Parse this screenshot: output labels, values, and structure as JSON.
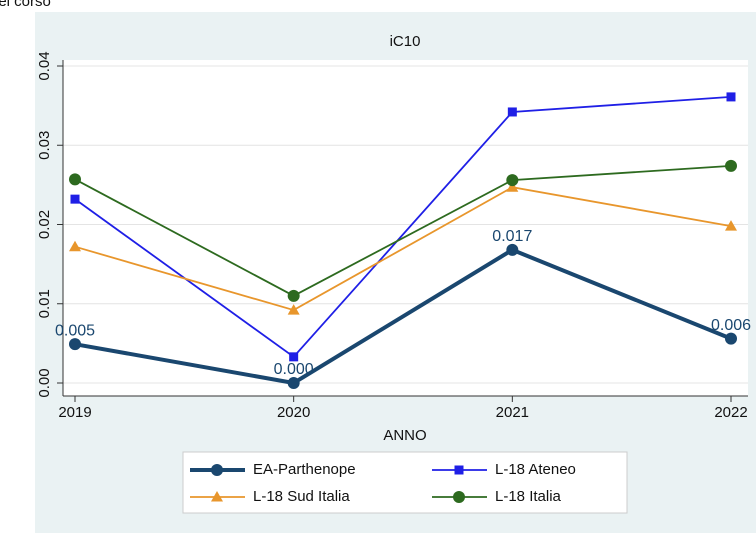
{
  "header": {
    "caption": "del corso"
  },
  "chart_data": {
    "type": "line",
    "title": "iC10",
    "x_label": "ANNO",
    "x": [
      2019,
      2020,
      2021,
      2022
    ],
    "xlim": [
      2019,
      2022
    ],
    "xticks": [
      2019,
      2020,
      2021,
      2022
    ],
    "ylim": [
      0,
      0.04
    ],
    "yticks": [
      {
        "value": 0,
        "label": "0.00"
      },
      {
        "value": 0.01,
        "label": "0.01"
      },
      {
        "value": 0.02,
        "label": "0.02"
      },
      {
        "value": 0.03,
        "label": "0.03"
      },
      {
        "value": 0.04,
        "label": "0.04"
      }
    ],
    "grid": true,
    "series": [
      {
        "name": "EA-Parthenope",
        "color": "#1a476f",
        "marker": "circle",
        "values": [
          0.0049,
          0.0,
          0.0168,
          0.0056
        ],
        "value_labels": [
          "0.005",
          "0.000",
          "0.017",
          "0.006"
        ]
      },
      {
        "name": "L-18 Ateneo",
        "color": "#1f1fe6",
        "marker": "square",
        "values": [
          0.0232,
          0.0033,
          0.0342,
          0.0361
        ]
      },
      {
        "name": "L-18 Sud Italia",
        "color": "#e8962c",
        "marker": "triangle",
        "values": [
          0.0172,
          0.0092,
          0.0247,
          0.0198
        ]
      },
      {
        "name": "L-18 Italia",
        "color": "#2d6a1f",
        "marker": "circle",
        "values": [
          0.0257,
          0.011,
          0.0256,
          0.0274
        ]
      }
    ]
  }
}
